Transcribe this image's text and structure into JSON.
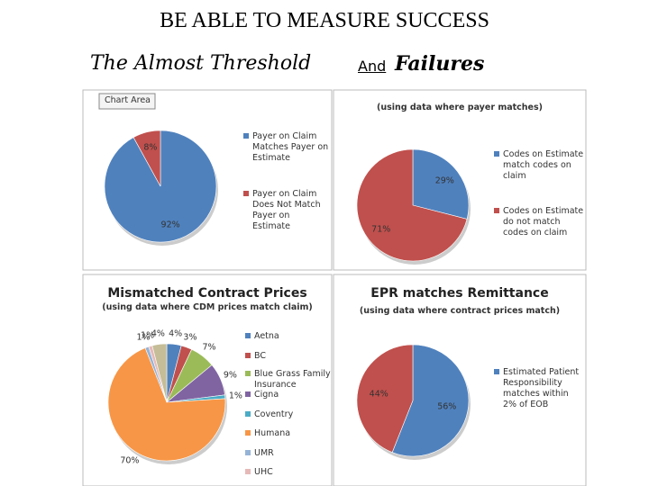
{
  "header": {
    "title": "BE ABLE TO MEASURE SUCCESS",
    "left_heading": "The Almost Threshold",
    "connector": "And",
    "right_heading": "Failures"
  },
  "chart_data": [
    {
      "type": "pie",
      "tooltip": "Chart Area",
      "categories": [
        "Payer on Claim Matches Payer on Estimate",
        "Payer on Claim Does Not Match Payer on Estimate"
      ],
      "values": [
        92,
        8
      ],
      "value_labels": [
        "92%",
        "8%"
      ],
      "colors": [
        "#4f81bd",
        "#c0504d"
      ]
    },
    {
      "type": "pie",
      "subtitle": "(using data where payer matches)",
      "categories": [
        "Codes on Estimate match codes on claim",
        "Codes on Estimate do not match codes on claim"
      ],
      "values": [
        29,
        71
      ],
      "value_labels": [
        "29%",
        "71%"
      ],
      "colors": [
        "#4f81bd",
        "#c0504d"
      ]
    },
    {
      "type": "pie",
      "title": "Mismatched Contract Prices",
      "subtitle": "(using data where CDM prices match claim)",
      "categories": [
        "Aetna",
        "BC",
        "Blue Grass Family Insurance",
        "Cigna",
        "Coventry",
        "Humana",
        "UMR",
        "UHC",
        null
      ],
      "values": [
        4,
        3,
        7,
        9,
        1,
        70,
        1,
        1,
        4
      ],
      "value_labels": [
        "4%",
        "3%",
        "7%",
        "9%",
        "1%",
        "70%",
        "1%",
        "1%",
        "4%"
      ],
      "colors": [
        "#4f81bd",
        "#c0504d",
        "#9bbb59",
        "#8064a2",
        "#4bacc6",
        "#f79646",
        "#95b3d7",
        "#e6b9b8",
        "#c4bd97"
      ]
    },
    {
      "type": "pie",
      "title": "EPR matches Remittance",
      "subtitle": "(using data where contract prices match)",
      "categories": [
        "Estimated Patient Responsibility matches within 2% of EOB",
        null
      ],
      "values": [
        56,
        44
      ],
      "value_labels": [
        "56%",
        "44%"
      ],
      "colors": [
        "#4f81bd",
        "#c0504d"
      ]
    }
  ]
}
